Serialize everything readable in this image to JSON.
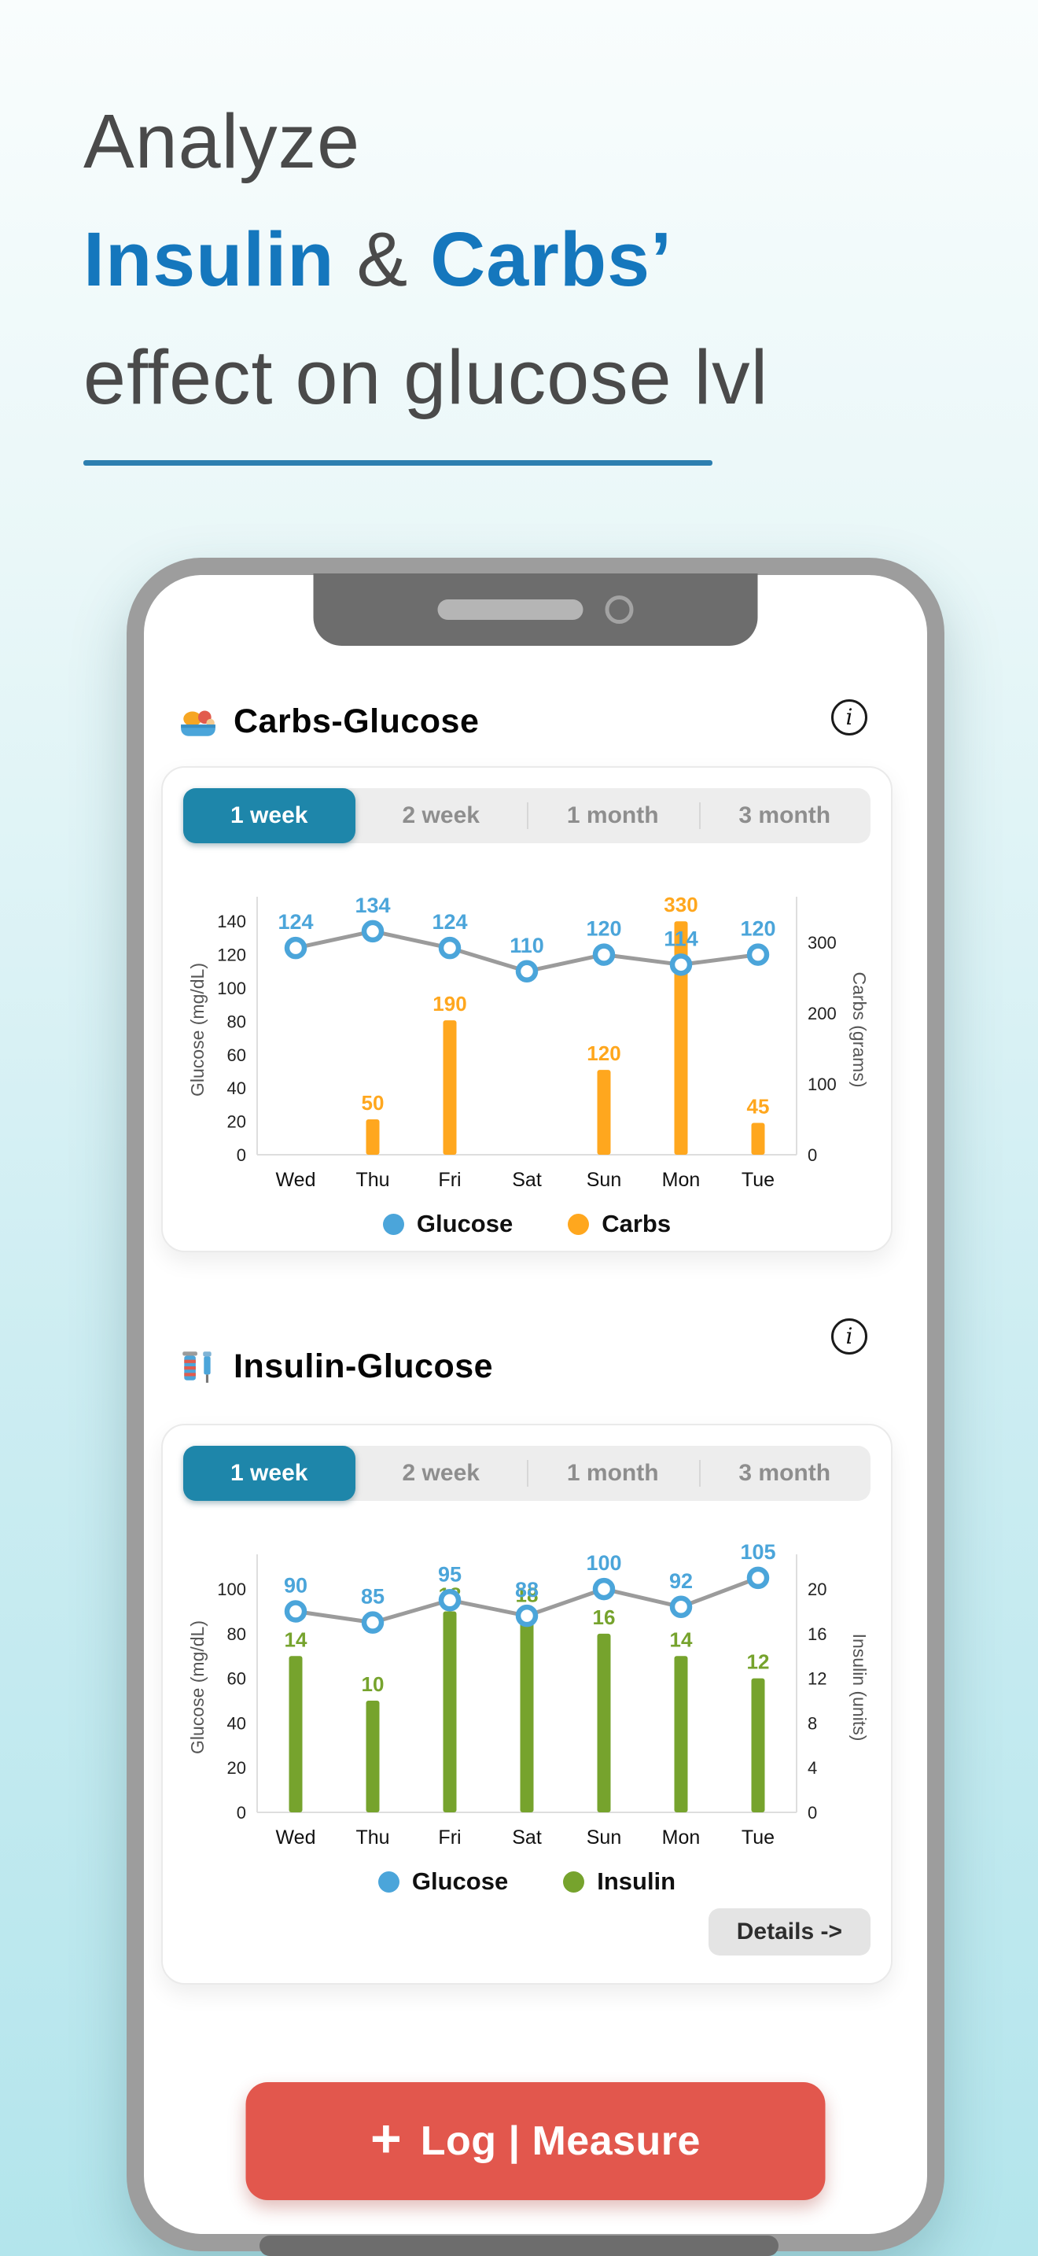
{
  "headline": {
    "line1": "Analyze",
    "insulin": "Insulin",
    "ampersand": "&",
    "carbs": "Carbs’",
    "line3": "effect on glucose lvl"
  },
  "colors": {
    "accent_blue": "#1577bd",
    "selected_tab_teal": "#1e86aa",
    "glucose_blue": "#4ba5da",
    "carbs_orange": "#ffa71e",
    "insulin_green": "#76a32d",
    "log_button_red": "#e2574d",
    "line_gray": "#9b9b9b"
  },
  "icons": {
    "section1": "food-plate-icon",
    "section2": "insulin-syringe-icon",
    "info": "info-icon"
  },
  "sections": [
    {
      "title": "Carbs-Glucose",
      "tabs": [
        {
          "label": "1 week",
          "selected": true
        },
        {
          "label": "2 week",
          "selected": false
        },
        {
          "label": "1 month",
          "selected": false
        },
        {
          "label": "3 month",
          "selected": false
        }
      ],
      "legend": [
        {
          "label": "Glucose",
          "color": "#4ba5da"
        },
        {
          "label": "Carbs",
          "color": "#ffa71e"
        }
      ]
    },
    {
      "title": "Insulin-Glucose",
      "tabs": [
        {
          "label": "1 week",
          "selected": true
        },
        {
          "label": "2 week",
          "selected": false
        },
        {
          "label": "1 month",
          "selected": false
        },
        {
          "label": "3 month",
          "selected": false
        }
      ],
      "legend": [
        {
          "label": "Glucose",
          "color": "#4ba5da"
        },
        {
          "label": "Insulin",
          "color": "#76a32d"
        }
      ],
      "details_button": "Details ->"
    }
  ],
  "chart_data": [
    {
      "type": "combo",
      "title": "Carbs-Glucose",
      "categories": [
        "Wed",
        "Thu",
        "Fri",
        "Sat",
        "Sun",
        "Mon",
        "Tue"
      ],
      "left_axis": {
        "label": "Glucose (mg/dL)",
        "ticks": [
          0,
          20,
          40,
          60,
          80,
          100,
          120,
          140
        ],
        "max": 150
      },
      "right_axis": {
        "label": "Carbs (grams)",
        "ticks": [
          0,
          100,
          200,
          300
        ],
        "max": 330,
        "left_equiv_of_max": 140
      },
      "series": [
        {
          "name": "Carbs",
          "type": "bar",
          "axis": "right",
          "color": "#ffa71e",
          "values": [
            null,
            50,
            190,
            null,
            120,
            330,
            45
          ]
        },
        {
          "name": "Glucose",
          "type": "line",
          "axis": "left",
          "color": "#4ba5da",
          "line_color": "#9b9b9b",
          "values": [
            124,
            134,
            124,
            110,
            120,
            114,
            120
          ]
        }
      ],
      "legend_position": "bottom",
      "grid": false
    },
    {
      "type": "combo",
      "title": "Insulin-Glucose",
      "categories": [
        "Wed",
        "Thu",
        "Fri",
        "Sat",
        "Sun",
        "Mon",
        "Tue"
      ],
      "left_axis": {
        "label": "Glucose (mg/dL)",
        "ticks": [
          0,
          20,
          40,
          60,
          80,
          100
        ],
        "max": 112
      },
      "right_axis": {
        "label": "Insulin (units)",
        "ticks": [
          0,
          4,
          8,
          12,
          16,
          20
        ],
        "max": 20,
        "left_equiv_of_max": 100
      },
      "series": [
        {
          "name": "Insulin",
          "type": "bar",
          "axis": "right",
          "color": "#76a32d",
          "values": [
            14,
            10,
            18,
            18,
            16,
            14,
            12
          ]
        },
        {
          "name": "Glucose",
          "type": "line",
          "axis": "left",
          "color": "#4ba5da",
          "line_color": "#9b9b9b",
          "values": [
            90,
            85,
            95,
            88,
            100,
            92,
            105
          ]
        }
      ],
      "legend_position": "bottom",
      "grid": false
    }
  ],
  "log_button": {
    "plus": "+",
    "label": "Log | Measure"
  }
}
